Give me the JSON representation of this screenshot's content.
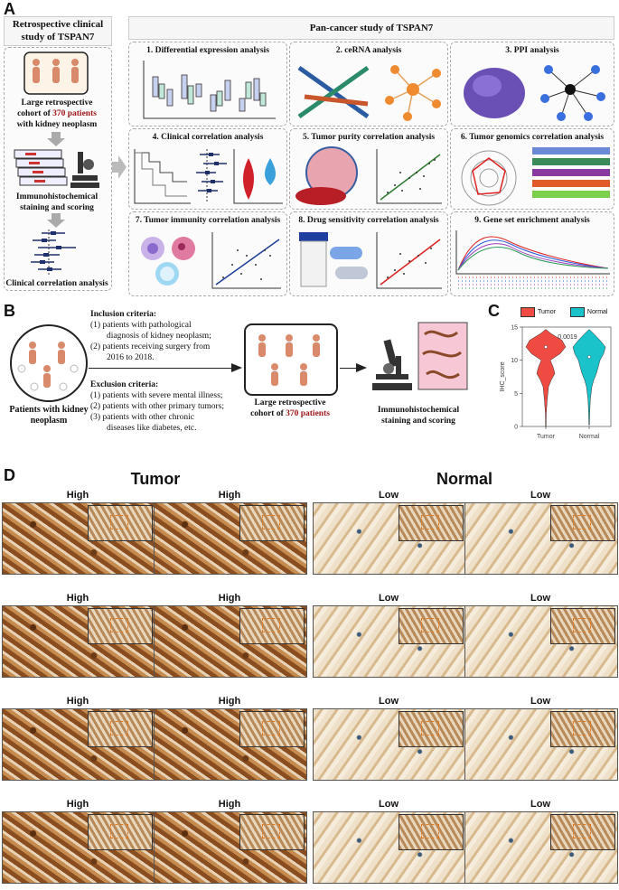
{
  "panels": {
    "a": "A",
    "b": "B",
    "c": "C",
    "d": "D"
  },
  "panelA": {
    "left_title": "Retrospective clinical study of TSPAN7",
    "cohort_text_1": "Large retrospective",
    "cohort_text_2": "cohort of",
    "cohort_number": "370 patients",
    "cohort_text_3": "with kidney neoplasm",
    "ihc_text": "Immunohistochemical staining and scoring",
    "clinical_text": "Clinical correlation analysis",
    "pan_title": "Pan-cancer study of TSPAN7",
    "cells": [
      "1. Differential expression analysis",
      "2. ceRNA analysis",
      "3. PPI analysis",
      "4. Clinical correlation analysis",
      "5. Tumor purity correlation analysis",
      "6. Tumor genomics correlation analysis",
      "7. Tumor immunity correlation analysis",
      "8. Drug sensitivity correlation analysis",
      "9. Gene set enrichment analysis"
    ]
  },
  "panelB": {
    "patients_label": "Patients with kidney neoplasm",
    "inclusion_title": "Inclusion criteria:",
    "inclusion": [
      "(1) patients with pathological",
      "diagnosis of kidney neoplasm;",
      "(2) patients receiving surgery from",
      "2016 to 2018."
    ],
    "exclusion_title": "Exclusion criteria:",
    "exclusion": [
      "(1) patients with severe mental illness;",
      "(2) patients with other primary tumors;",
      "(3) patients with other chronic",
      "diseases like diabetes, etc."
    ],
    "cohort_1": "Large retrospective",
    "cohort_2": "cohort of",
    "cohort_number": "370 patients",
    "ihc_1": "Immunohistochemical",
    "ihc_2": "staining and scoring"
  },
  "chart_data": {
    "type": "violin",
    "categories": [
      "Tumor",
      "Normal"
    ],
    "legend": [
      "Tumor",
      "Normal"
    ],
    "colors": {
      "Tumor": "#ef4b43",
      "Normal": "#19c3c9"
    },
    "ylabel": "IHC_score",
    "yticks": [
      0,
      5,
      10,
      15
    ],
    "ylim": [
      0,
      15
    ],
    "p_value": "0.0019",
    "medians": {
      "Tumor": 12,
      "Normal": 10.5
    }
  },
  "panelD": {
    "tumor_title": "Tumor",
    "normal_title": "Normal",
    "tumor_labels": [
      "High",
      "High",
      "High",
      "High",
      "High",
      "High",
      "High",
      "High"
    ],
    "normal_labels": [
      "Low",
      "Low",
      "Low",
      "Low",
      "Low",
      "Low",
      "Low",
      "Low"
    ]
  }
}
